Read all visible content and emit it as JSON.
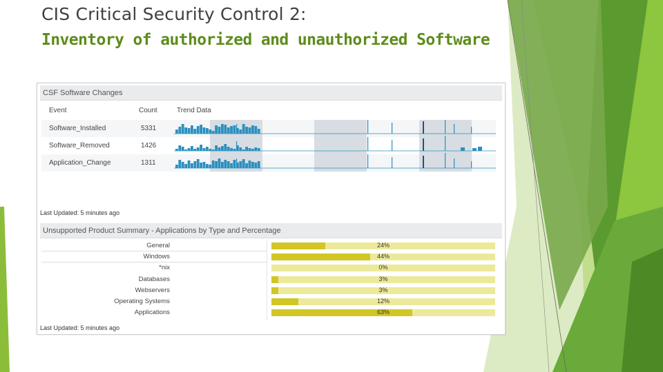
{
  "slide": {
    "title_line1": "CIS Critical Security Control 2:",
    "title_line2": "Inventory of authorized and unauthorized Software"
  },
  "software_changes": {
    "header": "CSF  Software Changes",
    "columns": [
      "Event",
      "Count",
      "Trend Data"
    ],
    "rows": [
      {
        "event": "Software_Installed",
        "count": "5331"
      },
      {
        "event": "Software_Removed",
        "count": "1426"
      },
      {
        "event": "Application_Change",
        "count": "1311"
      }
    ],
    "last_updated": "Last Updated: 5 minutes ago"
  },
  "unsupported_summary": {
    "header": "Unsupported Product Summary - Applications by Type and Percentage",
    "last_updated": "Last Updated: 5 minutes ago",
    "chart_data": {
      "type": "bar",
      "orientation": "horizontal",
      "title": "Unsupported Product Summary - Applications by Type and Percentage",
      "categories": [
        "General",
        "Windows",
        "*nix",
        "Databases",
        "Webservers",
        "Operating Systems",
        "Applications"
      ],
      "values": [
        24,
        44,
        0,
        3,
        3,
        12,
        63
      ],
      "value_labels": [
        "24%",
        "44%",
        "0%",
        "3%",
        "3%",
        "12%",
        "63%"
      ],
      "unit": "%",
      "xlim": [
        0,
        100
      ]
    }
  },
  "colors": {
    "title_green": "#5e8c1c",
    "trend_blue": "#2b8fbf",
    "bar_fill": "#d1c624",
    "bar_track": "#ecea9a"
  }
}
